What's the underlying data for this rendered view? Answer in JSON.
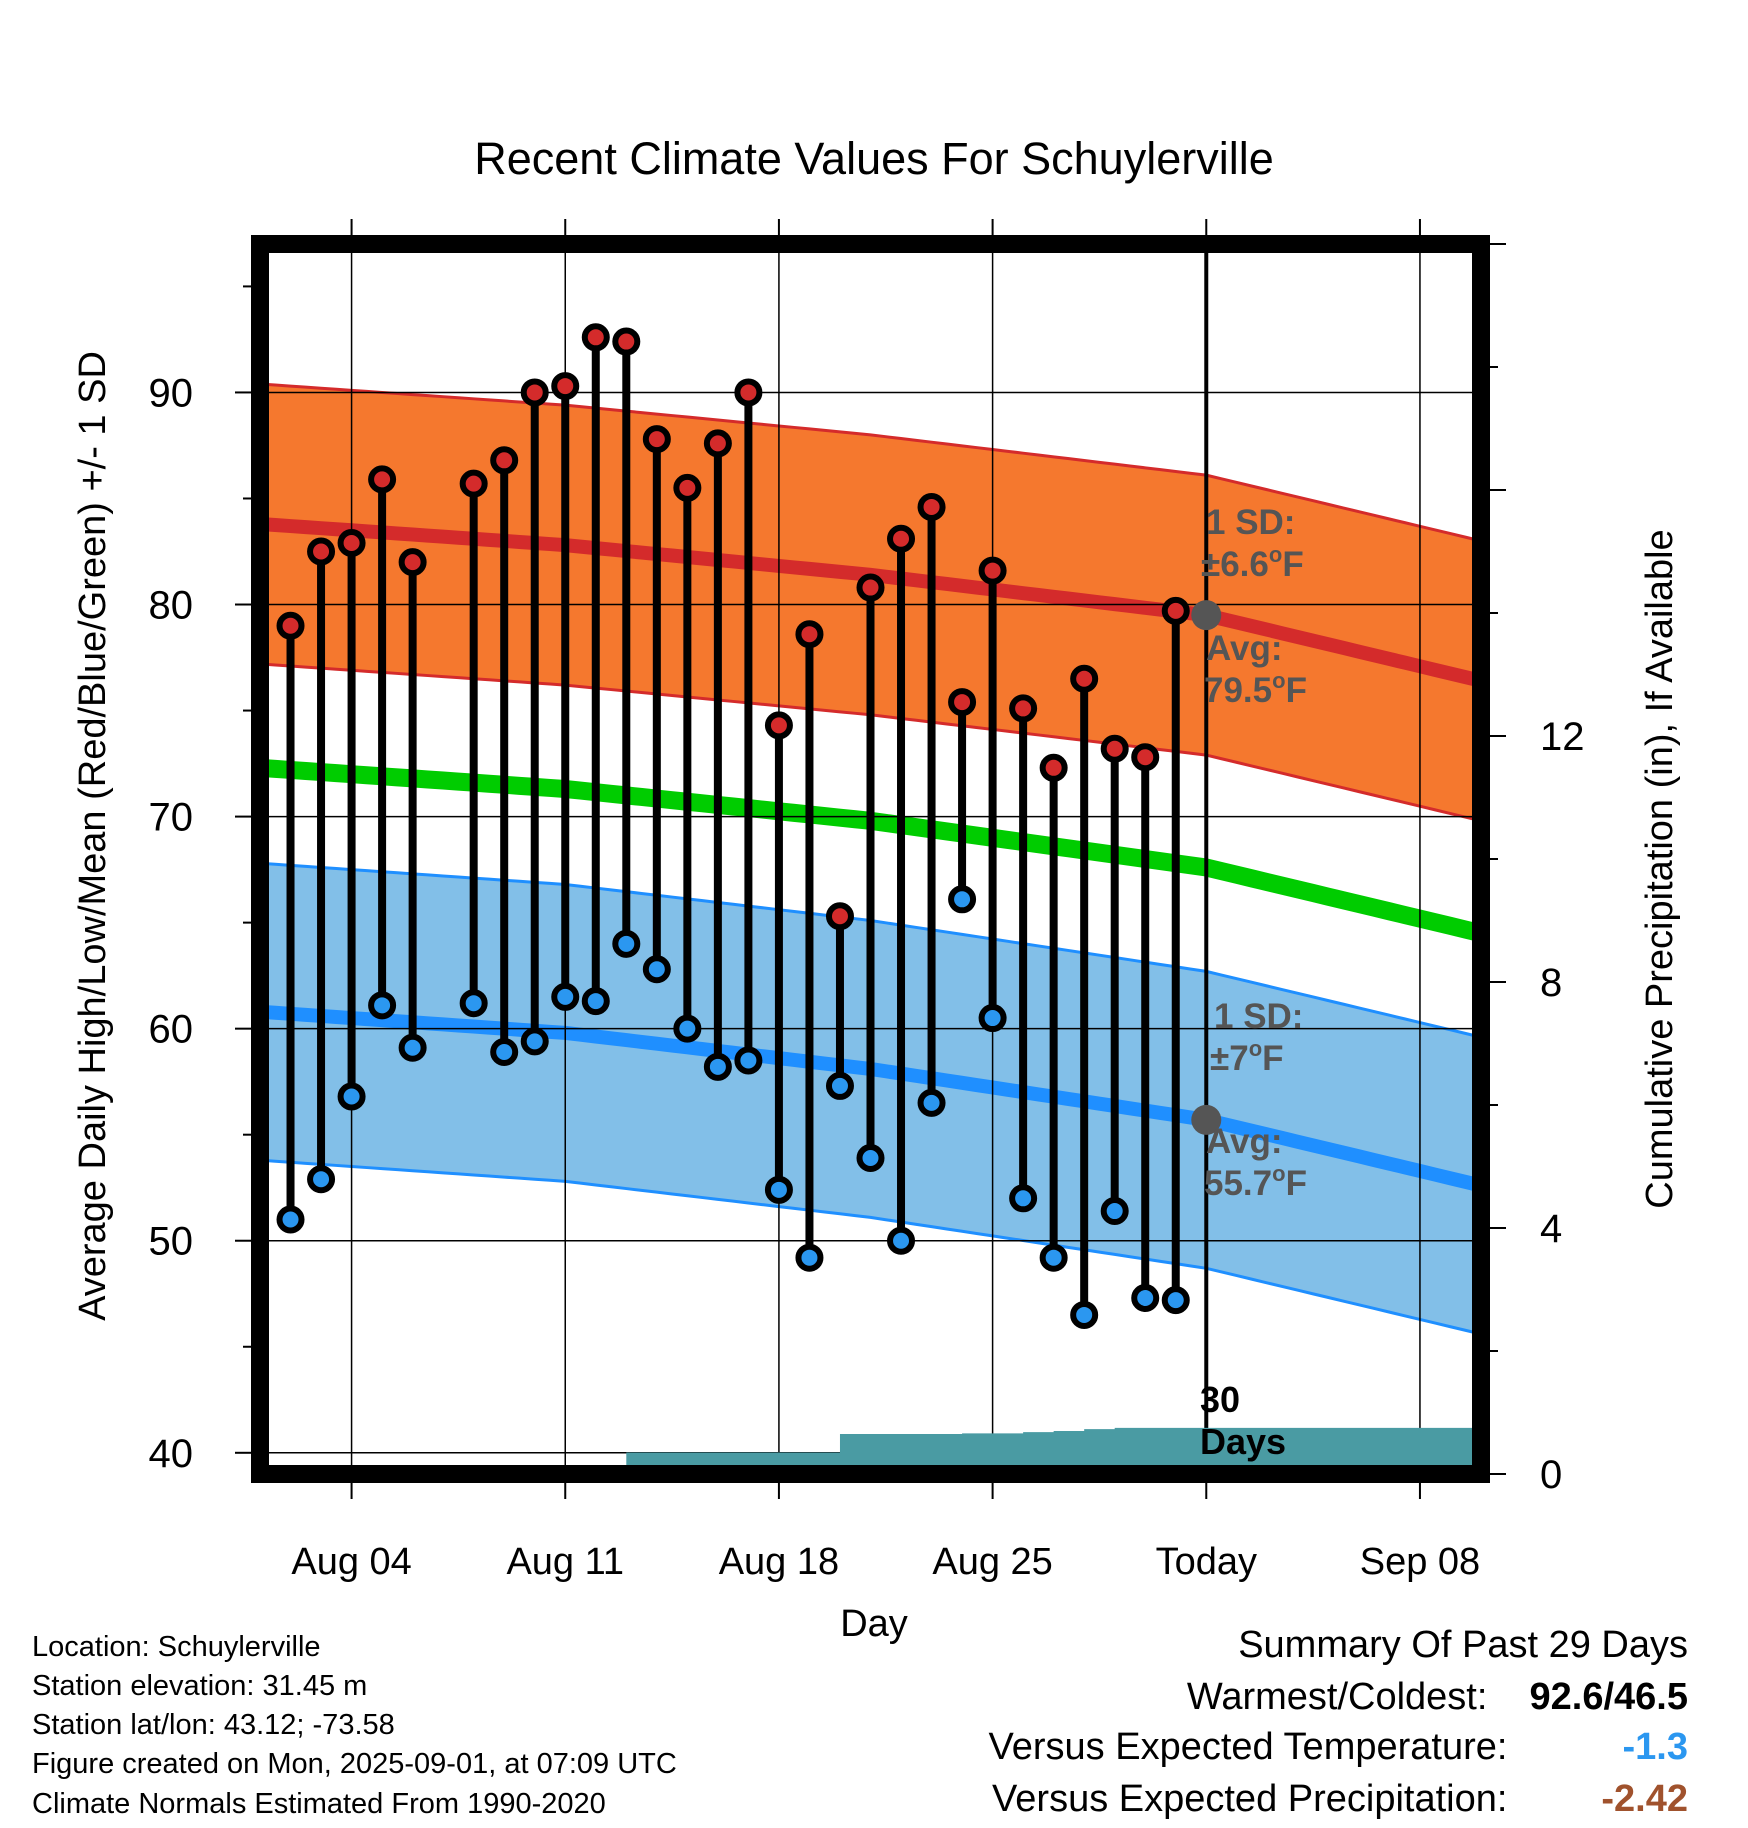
{
  "chart_data": {
    "type": "line",
    "title": "Recent Climate Values For Schuylerville",
    "xlabel": "Day",
    "ylabel": "Average Daily High/Low/Mean (Red/Blue/Green) +/- 1 SD",
    "y2label": "Cumulative Precipitation (in), If Available",
    "ylim": [
      39,
      97
    ],
    "y2lim": [
      0,
      20
    ],
    "yticks": [
      40,
      50,
      60,
      70,
      80,
      90
    ],
    "y2ticks": [
      0,
      4,
      8,
      12
    ],
    "x_start": "Aug 01",
    "x_end": "Sep 10",
    "xtick_labels": [
      {
        "date": "Aug 04",
        "label": "Aug 04"
      },
      {
        "date": "Aug 11",
        "label": "Aug 11"
      },
      {
        "date": "Aug 18",
        "label": "Aug 18"
      },
      {
        "date": "Aug 25",
        "label": "Aug 25"
      },
      {
        "date": "Sep 01",
        "label": "Today"
      },
      {
        "date": "Sep 08",
        "label": "Sep 08"
      }
    ],
    "today": "Sep 01",
    "window_label_line1": "30",
    "window_label_line2": "Days",
    "normals": {
      "dates": [
        "Aug 01",
        "Aug 11",
        "Aug 21",
        "Sep 01",
        "Sep 10"
      ],
      "high_mean": [
        83.8,
        82.8,
        81.4,
        79.5,
        76.4
      ],
      "high_sd": 6.6,
      "low_mean": [
        60.8,
        59.8,
        58.1,
        55.7,
        52.6
      ],
      "low_sd": 7,
      "mean": [
        72.3,
        71.3,
        69.8,
        67.6,
        64.5
      ]
    },
    "series": [
      {
        "name": "High",
        "dates": [
          "Aug 02",
          "Aug 03",
          "Aug 04",
          "Aug 05",
          "Aug 06",
          "Aug 08",
          "Aug 09",
          "Aug 10",
          "Aug 11",
          "Aug 12",
          "Aug 13",
          "Aug 14",
          "Aug 15",
          "Aug 16",
          "Aug 17",
          "Aug 18",
          "Aug 19",
          "Aug 20",
          "Aug 21",
          "Aug 22",
          "Aug 23",
          "Aug 24",
          "Aug 25",
          "Aug 26",
          "Aug 27",
          "Aug 28",
          "Aug 29",
          "Aug 30",
          "Aug 31"
        ],
        "values": [
          79.0,
          82.5,
          82.9,
          85.9,
          82.0,
          85.7,
          86.8,
          90.0,
          90.3,
          92.6,
          92.4,
          87.8,
          85.5,
          87.6,
          90.0,
          74.3,
          78.6,
          65.3,
          80.8,
          83.1,
          84.6,
          75.4,
          81.6,
          75.1,
          72.3,
          76.5,
          73.2,
          72.8,
          79.7
        ]
      },
      {
        "name": "Low",
        "dates": [
          "Aug 02",
          "Aug 03",
          "Aug 04",
          "Aug 05",
          "Aug 06",
          "Aug 08",
          "Aug 09",
          "Aug 10",
          "Aug 11",
          "Aug 12",
          "Aug 13",
          "Aug 14",
          "Aug 15",
          "Aug 16",
          "Aug 17",
          "Aug 18",
          "Aug 19",
          "Aug 20",
          "Aug 21",
          "Aug 22",
          "Aug 23",
          "Aug 24",
          "Aug 25",
          "Aug 26",
          "Aug 27",
          "Aug 28",
          "Aug 29",
          "Aug 30",
          "Aug 31"
        ],
        "values": [
          51.0,
          52.9,
          56.8,
          61.1,
          59.1,
          61.2,
          58.9,
          59.4,
          61.5,
          61.3,
          64.0,
          62.8,
          60.0,
          58.2,
          58.5,
          52.4,
          49.2,
          57.3,
          53.9,
          50.0,
          56.5,
          66.1,
          60.5,
          52.0,
          49.2,
          46.5,
          51.4,
          47.3,
          47.2
        ]
      }
    ],
    "precipitation": {
      "dates": [
        "Aug 12",
        "Aug 13",
        "Aug 19",
        "Aug 20",
        "Aug 21",
        "Aug 24",
        "Aug 26",
        "Aug 27",
        "Aug 28",
        "Aug 29",
        "Sep 10"
      ],
      "values": [
        0.0,
        0.35,
        0.35,
        0.65,
        0.65,
        0.66,
        0.68,
        0.7,
        0.73,
        0.75,
        0.75
      ]
    },
    "annotations": {
      "high_sd_line1": "1 SD:",
      "high_sd_line2": "±6.6",
      "high_avg_line1": "Avg:",
      "high_avg_line2": "79.5",
      "low_sd_line1": "1 SD:",
      "low_sd_line2": "±7",
      "low_avg_line1": "Avg:",
      "low_avg_line2": "55.7",
      "degree_mark": "o",
      "unit_letter": "F"
    },
    "colors": {
      "high_band": "#f5782e",
      "high_edge": "#d42b2b",
      "high_line": "#d42b2b",
      "low_band": "#82bfe8",
      "low_edge": "#1f8fff",
      "low_line": "#1f8fff",
      "mean_line": "#00cc00",
      "precip": "#4a9ba3",
      "high_dot": "#d42b2b",
      "low_dot": "#2b97f0",
      "today_dot": "#555555",
      "annotation_text": "#555555"
    }
  },
  "station": {
    "location": "Location: Schuylerville",
    "elevation": "Station elevation: 31.45 m",
    "latlon": "Station lat/lon: 43.12; -73.58",
    "created": "Figure created on Mon, 2025-09-01, at 07:09 UTC",
    "normals": "Climate Normals Estimated From 1990-2020"
  },
  "summary": {
    "title": "Summary Of Past 29 Days",
    "warm_cold_label": "Warmest/Coldest:",
    "warm_cold_value": "92.6/46.5",
    "temp_label": "Versus Expected Temperature:",
    "temp_value": "-1.3",
    "temp_color": "#2b97f0",
    "precip_label": "Versus Expected Precipitation:",
    "precip_value": "-2.42",
    "precip_color": "#a0522d"
  }
}
